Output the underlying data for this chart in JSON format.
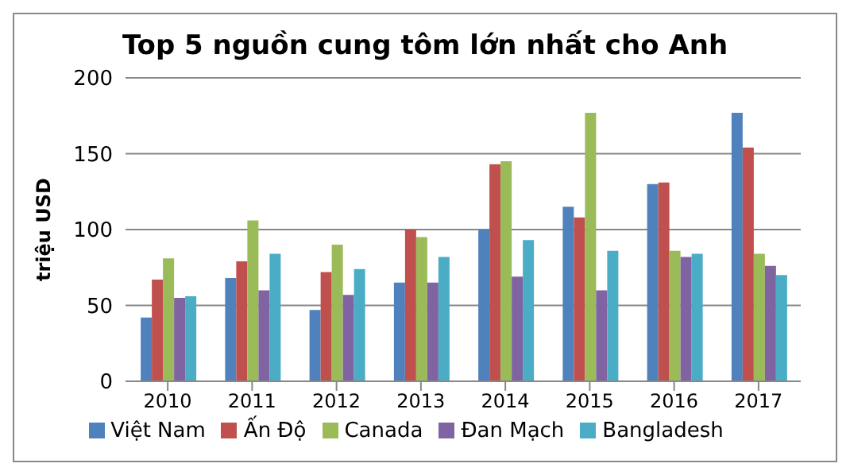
{
  "chart_data": {
    "type": "bar",
    "title": "Top 5 nguồn cung tôm lớn nhất cho Anh",
    "ylabel": "triệu USD",
    "categories": [
      "2010",
      "2011",
      "2012",
      "2013",
      "2014",
      "2015",
      "2016",
      "2017"
    ],
    "series": [
      {
        "name": "Việt Nam",
        "color": "#4f81bd",
        "values": [
          42,
          68,
          47,
          65,
          100,
          115,
          130,
          177
        ]
      },
      {
        "name": "Ấn Độ",
        "color": "#c0504d",
        "values": [
          67,
          79,
          72,
          100,
          143,
          108,
          131,
          154
        ]
      },
      {
        "name": "Canada",
        "color": "#9bbb59",
        "values": [
          81,
          106,
          90,
          95,
          145,
          177,
          86,
          84
        ]
      },
      {
        "name": "Đan Mạch",
        "color": "#8064a2",
        "values": [
          55,
          60,
          57,
          65,
          69,
          60,
          82,
          76
        ]
      },
      {
        "name": "Bangladesh",
        "color": "#4bacc6",
        "values": [
          56,
          84,
          74,
          82,
          93,
          86,
          84,
          70
        ]
      }
    ],
    "ylim": [
      0,
      200
    ],
    "yticks": [
      0,
      50,
      100,
      150,
      200
    ],
    "grid": "y",
    "legend": "bottom"
  }
}
